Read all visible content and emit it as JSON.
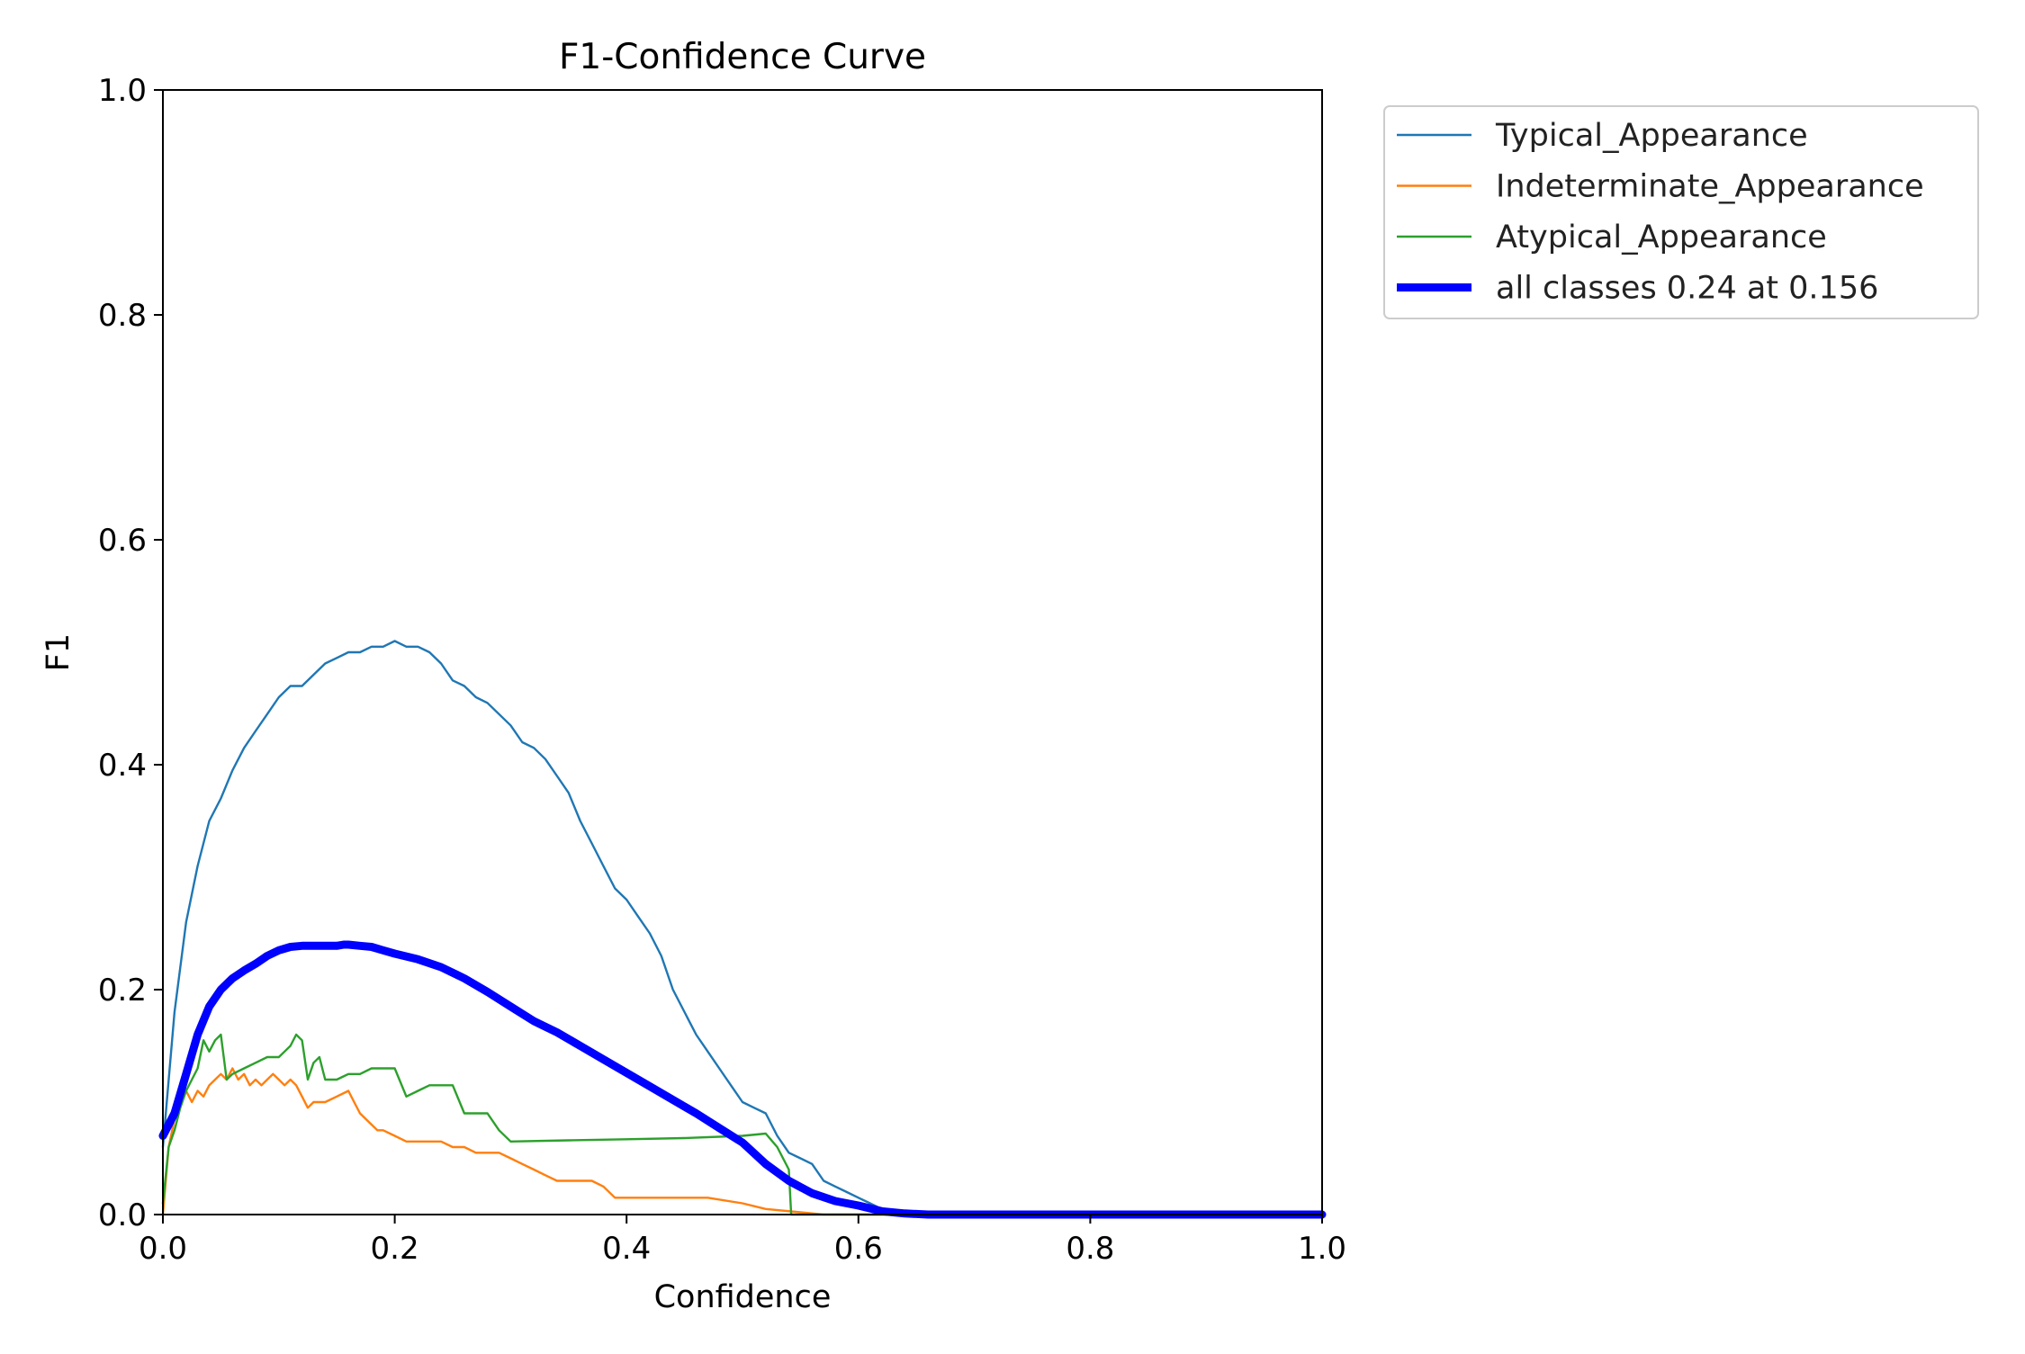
{
  "chart_data": {
    "type": "line",
    "title": "F1-Confidence Curve",
    "xlabel": "Confidence",
    "ylabel": "F1",
    "xlim": [
      0.0,
      1.0
    ],
    "ylim": [
      0.0,
      1.0
    ],
    "xticks": [
      "0.0",
      "0.2",
      "0.4",
      "0.6",
      "0.8",
      "1.0"
    ],
    "yticks": [
      "0.0",
      "0.2",
      "0.4",
      "0.6",
      "0.8",
      "1.0"
    ],
    "grid": false,
    "legend_position": "outside-top-right",
    "series": [
      {
        "name": "Typical_Appearance",
        "color": "#1f77b4",
        "style": "thin",
        "x": [
          0.0,
          0.01,
          0.02,
          0.03,
          0.04,
          0.05,
          0.06,
          0.07,
          0.08,
          0.09,
          0.1,
          0.11,
          0.12,
          0.13,
          0.14,
          0.15,
          0.16,
          0.17,
          0.18,
          0.19,
          0.2,
          0.21,
          0.22,
          0.23,
          0.24,
          0.25,
          0.26,
          0.27,
          0.28,
          0.29,
          0.3,
          0.31,
          0.32,
          0.33,
          0.34,
          0.35,
          0.36,
          0.37,
          0.38,
          0.39,
          0.4,
          0.41,
          0.42,
          0.43,
          0.44,
          0.45,
          0.46,
          0.47,
          0.48,
          0.49,
          0.5,
          0.51,
          0.52,
          0.53,
          0.54,
          0.55,
          0.56,
          0.57,
          0.58,
          0.59,
          0.6,
          0.61,
          0.62,
          0.63,
          0.64,
          0.65,
          0.7,
          0.8,
          0.9,
          1.0
        ],
        "y": [
          0.06,
          0.18,
          0.26,
          0.31,
          0.35,
          0.37,
          0.395,
          0.415,
          0.43,
          0.445,
          0.46,
          0.47,
          0.47,
          0.48,
          0.49,
          0.495,
          0.5,
          0.5,
          0.505,
          0.505,
          0.51,
          0.505,
          0.505,
          0.5,
          0.49,
          0.475,
          0.47,
          0.46,
          0.455,
          0.445,
          0.435,
          0.42,
          0.415,
          0.405,
          0.39,
          0.375,
          0.35,
          0.33,
          0.31,
          0.29,
          0.28,
          0.265,
          0.25,
          0.23,
          0.2,
          0.18,
          0.16,
          0.145,
          0.13,
          0.115,
          0.1,
          0.095,
          0.09,
          0.07,
          0.055,
          0.05,
          0.045,
          0.03,
          0.025,
          0.02,
          0.015,
          0.01,
          0.005,
          0.002,
          0.0,
          0.0,
          0.0,
          0.0,
          0.0,
          0.0
        ]
      },
      {
        "name": "Indeterminate_Appearance",
        "color": "#ff7f0e",
        "style": "thin",
        "x": [
          0.0,
          0.005,
          0.01,
          0.02,
          0.025,
          0.03,
          0.035,
          0.04,
          0.045,
          0.05,
          0.055,
          0.06,
          0.065,
          0.07,
          0.075,
          0.08,
          0.085,
          0.09,
          0.095,
          0.1,
          0.105,
          0.11,
          0.115,
          0.12,
          0.125,
          0.13,
          0.14,
          0.15,
          0.16,
          0.165,
          0.17,
          0.18,
          0.185,
          0.19,
          0.2,
          0.21,
          0.22,
          0.23,
          0.24,
          0.25,
          0.26,
          0.27,
          0.28,
          0.29,
          0.3,
          0.31,
          0.32,
          0.33,
          0.34,
          0.35,
          0.37,
          0.38,
          0.39,
          0.4,
          0.42,
          0.45,
          0.47,
          0.5,
          0.52,
          0.55,
          0.57,
          1.0
        ],
        "y": [
          0.0,
          0.06,
          0.085,
          0.11,
          0.1,
          0.11,
          0.105,
          0.115,
          0.12,
          0.125,
          0.12,
          0.13,
          0.12,
          0.125,
          0.115,
          0.12,
          0.115,
          0.12,
          0.125,
          0.12,
          0.115,
          0.12,
          0.115,
          0.105,
          0.095,
          0.1,
          0.1,
          0.105,
          0.11,
          0.1,
          0.09,
          0.08,
          0.075,
          0.075,
          0.07,
          0.065,
          0.065,
          0.065,
          0.065,
          0.06,
          0.06,
          0.055,
          0.055,
          0.055,
          0.05,
          0.045,
          0.04,
          0.035,
          0.03,
          0.03,
          0.03,
          0.025,
          0.015,
          0.015,
          0.015,
          0.015,
          0.015,
          0.01,
          0.005,
          0.002,
          0.0,
          0.0
        ]
      },
      {
        "name": "Atypical_Appearance",
        "color": "#2ca02c",
        "style": "thin",
        "x": [
          0.0,
          0.005,
          0.01,
          0.015,
          0.02,
          0.025,
          0.03,
          0.035,
          0.04,
          0.045,
          0.05,
          0.055,
          0.06,
          0.07,
          0.08,
          0.09,
          0.1,
          0.105,
          0.11,
          0.115,
          0.12,
          0.125,
          0.13,
          0.135,
          0.14,
          0.15,
          0.16,
          0.17,
          0.18,
          0.19,
          0.2,
          0.21,
          0.22,
          0.23,
          0.24,
          0.25,
          0.26,
          0.27,
          0.28,
          0.29,
          0.3,
          0.35,
          0.4,
          0.45,
          0.5,
          0.52,
          0.53,
          0.54,
          0.542,
          1.0
        ],
        "y": [
          0.01,
          0.06,
          0.075,
          0.095,
          0.11,
          0.12,
          0.13,
          0.155,
          0.145,
          0.155,
          0.16,
          0.12,
          0.125,
          0.13,
          0.135,
          0.14,
          0.14,
          0.145,
          0.15,
          0.16,
          0.155,
          0.12,
          0.135,
          0.14,
          0.12,
          0.12,
          0.125,
          0.125,
          0.13,
          0.13,
          0.13,
          0.105,
          0.11,
          0.115,
          0.115,
          0.115,
          0.09,
          0.09,
          0.09,
          0.075,
          0.065,
          0.066,
          0.067,
          0.068,
          0.07,
          0.072,
          0.06,
          0.04,
          0.0,
          0.0
        ]
      },
      {
        "name": "all classes 0.24 at 0.156",
        "color": "#0000ff",
        "style": "thick",
        "x": [
          0.0,
          0.01,
          0.02,
          0.03,
          0.04,
          0.05,
          0.06,
          0.07,
          0.08,
          0.09,
          0.1,
          0.11,
          0.12,
          0.13,
          0.14,
          0.15,
          0.156,
          0.16,
          0.17,
          0.18,
          0.19,
          0.2,
          0.22,
          0.24,
          0.26,
          0.28,
          0.3,
          0.32,
          0.34,
          0.36,
          0.38,
          0.4,
          0.42,
          0.44,
          0.46,
          0.48,
          0.5,
          0.52,
          0.54,
          0.56,
          0.58,
          0.6,
          0.62,
          0.64,
          0.66,
          0.7,
          0.8,
          0.9,
          1.0
        ],
        "y": [
          0.07,
          0.09,
          0.125,
          0.16,
          0.185,
          0.2,
          0.21,
          0.217,
          0.223,
          0.23,
          0.235,
          0.238,
          0.239,
          0.239,
          0.239,
          0.239,
          0.24,
          0.24,
          0.239,
          0.238,
          0.235,
          0.232,
          0.227,
          0.22,
          0.21,
          0.198,
          0.185,
          0.172,
          0.162,
          0.15,
          0.138,
          0.126,
          0.114,
          0.102,
          0.09,
          0.077,
          0.064,
          0.045,
          0.03,
          0.019,
          0.012,
          0.008,
          0.003,
          0.001,
          0.0,
          0.0,
          0.0,
          0.0,
          0.0
        ]
      }
    ]
  }
}
